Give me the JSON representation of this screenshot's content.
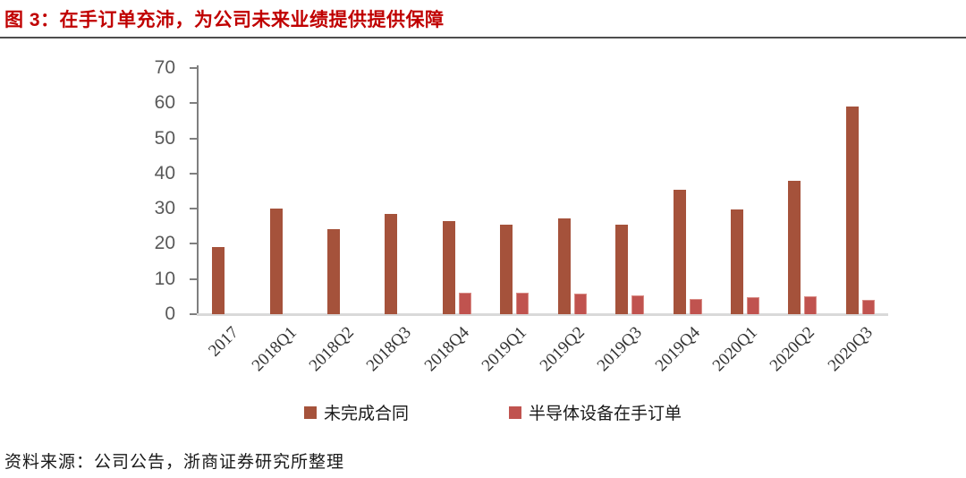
{
  "title": {
    "text": "图 3：在手订单充沛，为公司未来业绩提供提供保障",
    "color": "#c00000"
  },
  "source_note": "资料来源：公司公告，浙商证券研究所整理",
  "chart_data": {
    "type": "bar",
    "categories": [
      "2017",
      "2018Q1",
      "2018Q2",
      "2018Q3",
      "2018Q4",
      "2019Q1",
      "2019Q2",
      "2019Q3",
      "2019Q4",
      "2020Q1",
      "2020Q2",
      "2020Q3"
    ],
    "series": [
      {
        "name": "未完成合同",
        "color": "#a5523b",
        "values": [
          19,
          30,
          24.3,
          28.6,
          26.6,
          25.5,
          27.2,
          25.5,
          35.5,
          29.9,
          38,
          59
        ]
      },
      {
        "name": "半导体设备在手订单",
        "color": "#c0534f",
        "border_color": "#d98c86",
        "values": [
          null,
          null,
          null,
          null,
          6.0,
          6.0,
          5.8,
          5.4,
          4.4,
          4.8,
          5.0,
          4.2
        ]
      }
    ],
    "title": "",
    "xlabel": "",
    "ylabel": "",
    "ylim": [
      0,
      70
    ],
    "yticks": [
      0,
      10,
      20,
      30,
      40,
      50,
      60,
      70
    ],
    "grid": false,
    "legend_position": "bottom",
    "axis_style": {
      "y_axis_color": "#7f7f7f",
      "x_baseline_color": "#d9d9d9",
      "y_label_color": "#595959",
      "x_label_color": "#333333"
    }
  }
}
